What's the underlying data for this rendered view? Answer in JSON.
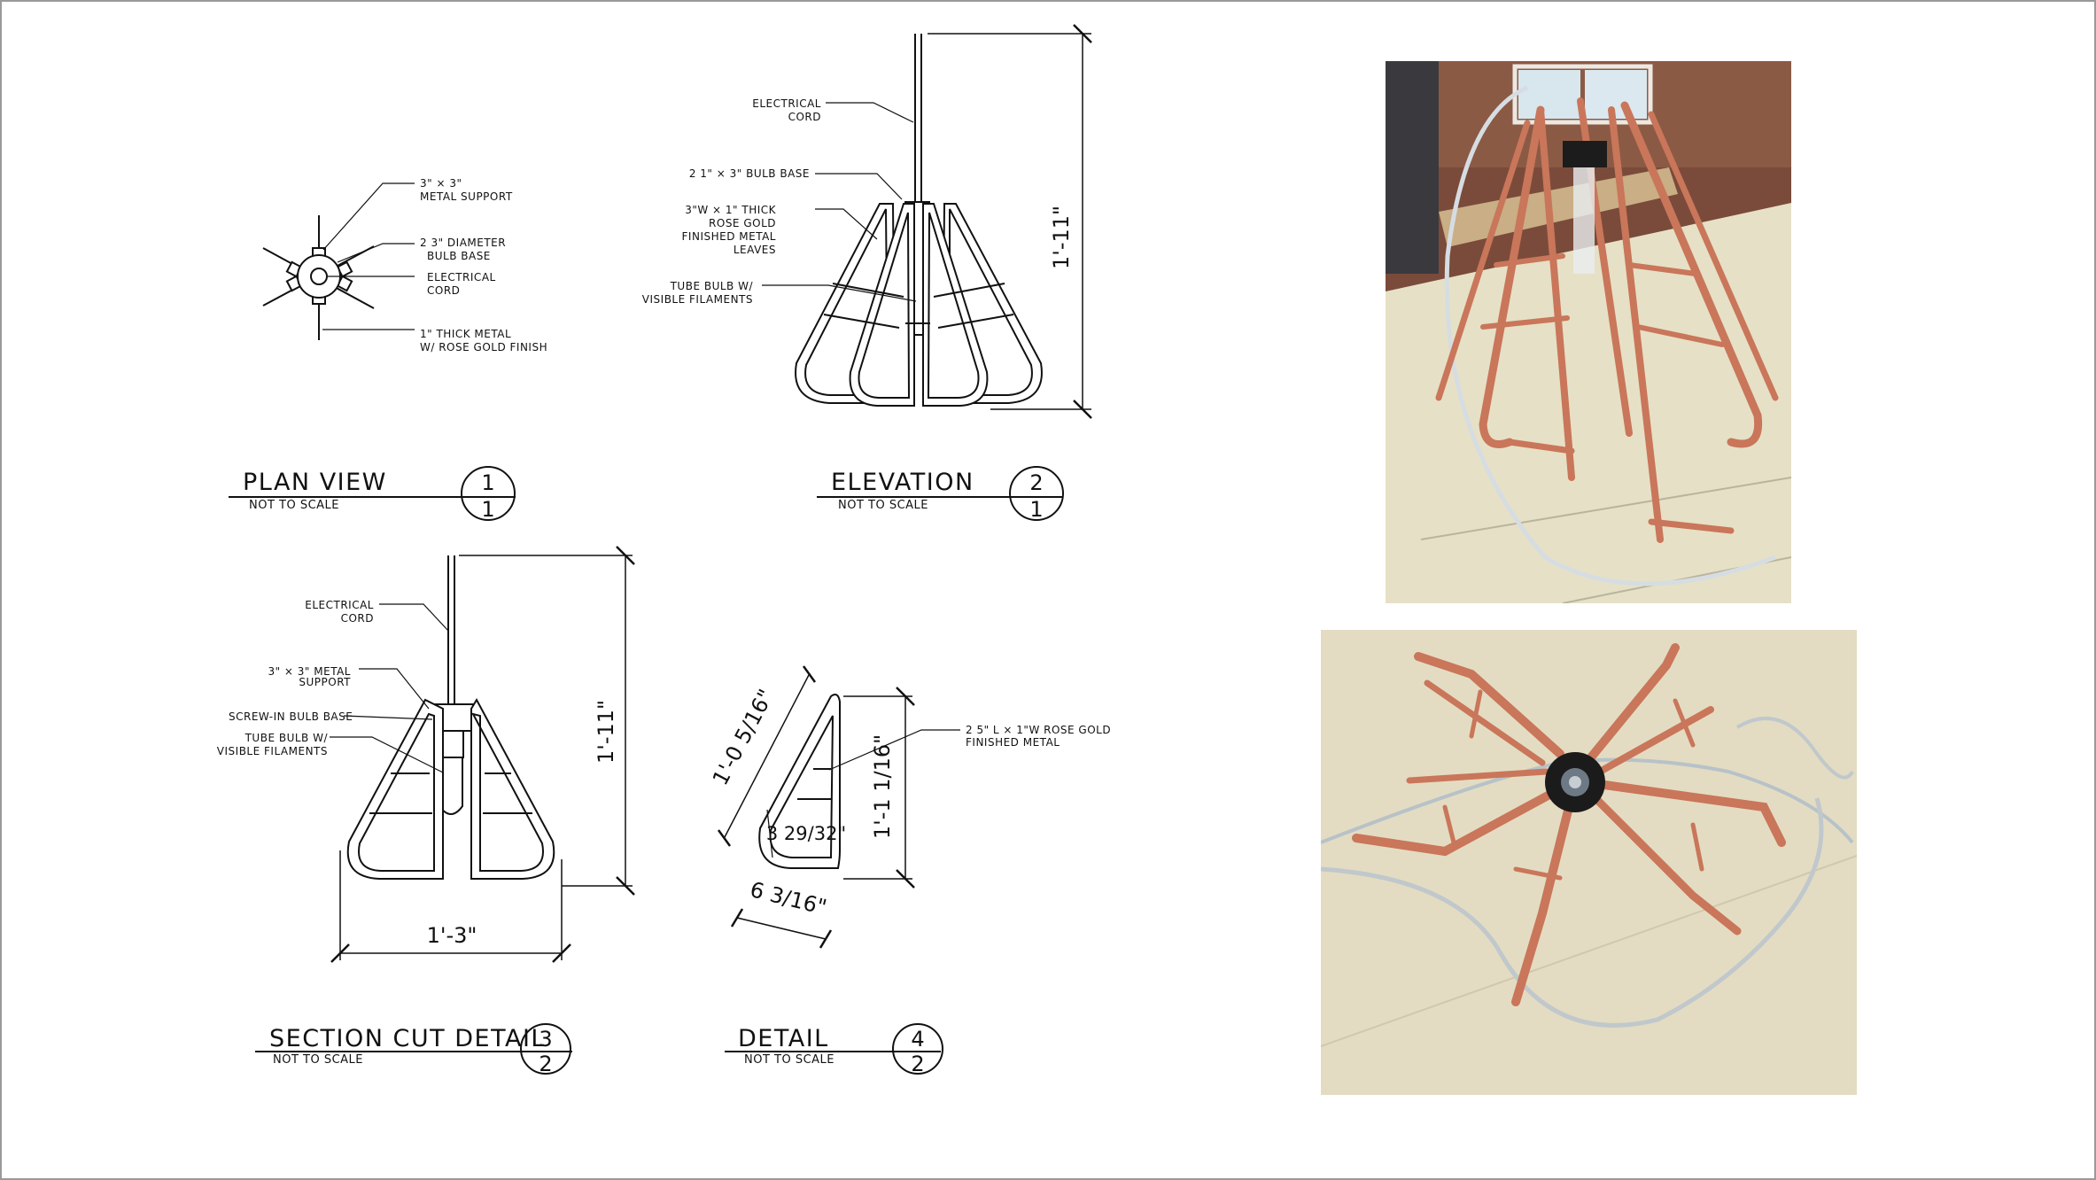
{
  "plan_view": {
    "notes": [
      {
        "lines": [
          "3\" × 3\"",
          "METAL SUPPORT"
        ]
      },
      {
        "lines": [
          "2 3\" DIAMETER",
          "BULB BASE"
        ]
      },
      {
        "lines": [
          "ELECTRICAL",
          "CORD"
        ]
      },
      {
        "lines": [
          "1\" THICK METAL",
          "W/ ROSE GOLD FINISH"
        ]
      }
    ],
    "title": "PLAN VIEW",
    "subtitle": "NOT TO SCALE",
    "num": "1",
    "sheet": "1"
  },
  "elevation": {
    "notes": [
      {
        "lines": [
          "ELECTRICAL",
          "CORD"
        ]
      },
      {
        "lines": [
          "2 1\" × 3\" BULB BASE"
        ]
      },
      {
        "lines": [
          "3\"W × 1\" THICK",
          "ROSE GOLD",
          "FINISHED METAL",
          "LEAVES"
        ]
      },
      {
        "lines": [
          "TUBE BULB W/",
          "VISIBLE FILAMENTS"
        ]
      }
    ],
    "height_dim": "1'-11\"",
    "title": "ELEVATION",
    "subtitle": "NOT TO SCALE",
    "num": "2",
    "sheet": "1"
  },
  "section": {
    "notes": [
      {
        "lines": [
          "ELECTRICAL",
          "CORD"
        ]
      },
      {
        "lines": [
          "3\" × 3\" METAL",
          "SUPPORT"
        ]
      },
      {
        "lines": [
          "SCREW-IN BULB BASE"
        ]
      },
      {
        "lines": [
          "TUBE BULB W/",
          "VISIBLE FILAMENTS"
        ]
      }
    ],
    "height_dim": "1'-11\"",
    "width_dim": "1'-3\"",
    "title": "SECTION CUT DETAIL",
    "subtitle": "NOT TO SCALE",
    "num": "3",
    "sheet": "2"
  },
  "detail": {
    "note": {
      "lines": [
        "2 5\" L × 1\"W ROSE GOLD",
        "FINISHED METAL"
      ]
    },
    "dim_diag": "1'-0 5/16\"",
    "dim_height": "1'-1 1/16\"",
    "dim_inner": "3 29/32\"",
    "dim_width": "6 3/16\"",
    "title": "DETAIL",
    "subtitle": "NOT TO SCALE",
    "num": "4",
    "sheet": "2"
  },
  "colors": {
    "copper": "#c9765a",
    "table": "#e3dcc2",
    "line": "#111111"
  }
}
